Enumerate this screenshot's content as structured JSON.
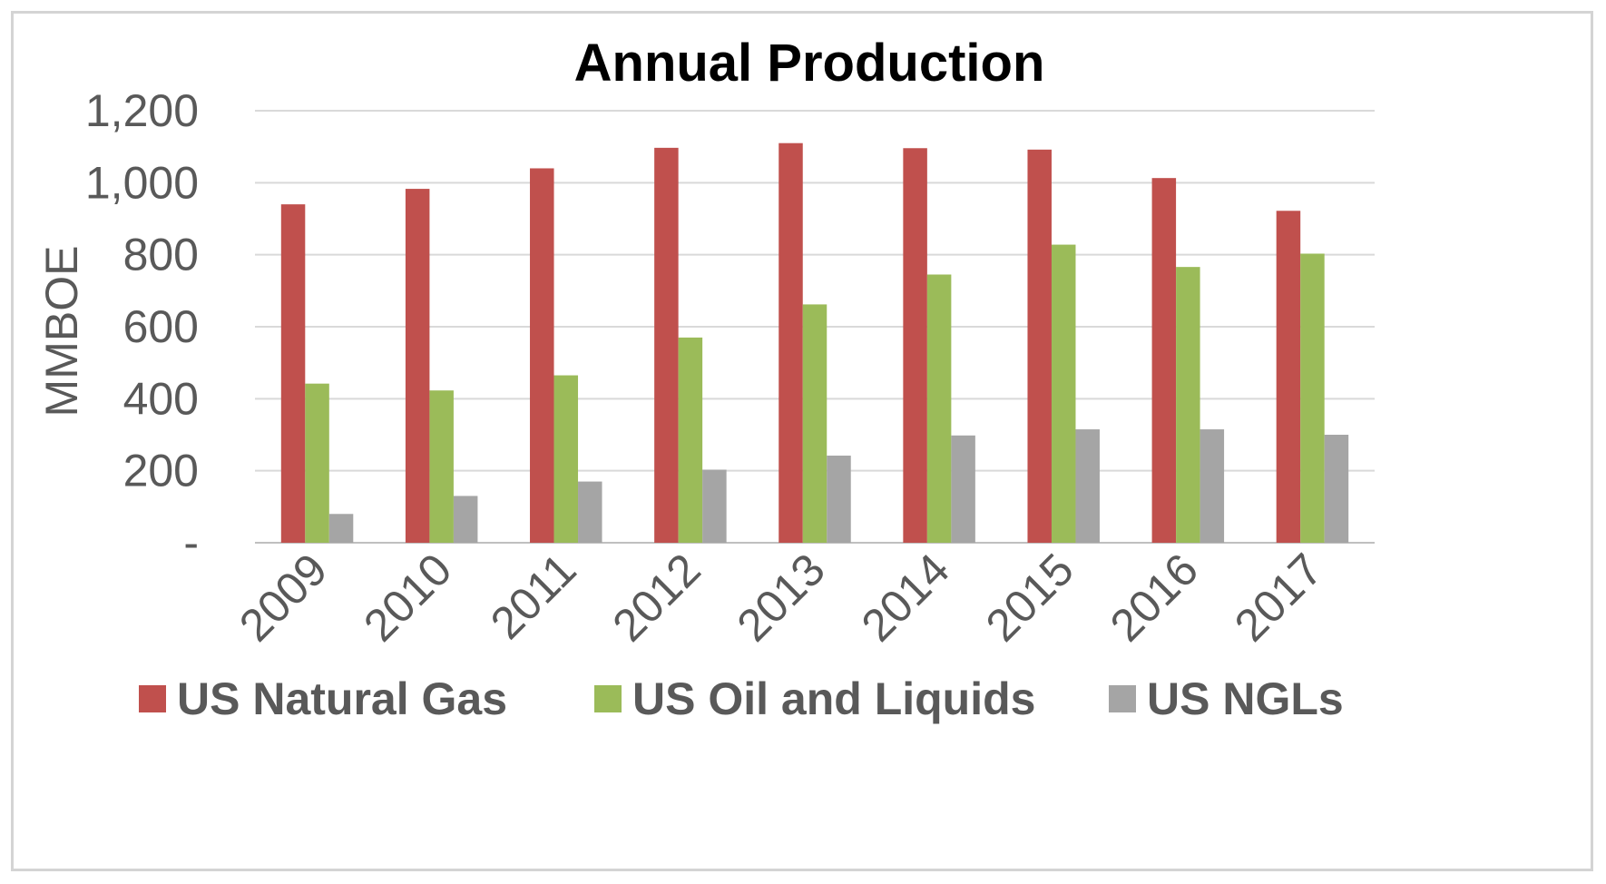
{
  "chart_data": {
    "type": "bar",
    "title": "Annual Production",
    "xlabel": "",
    "ylabel": "MMBOE",
    "ylim": [
      0,
      1200
    ],
    "yticks": [
      0,
      200,
      400,
      600,
      800,
      1000,
      1200
    ],
    "ytick_labels": [
      "-",
      "200",
      "400",
      "600",
      "800",
      "1,000",
      "1,200"
    ],
    "categories": [
      "2009",
      "2010",
      "2011",
      "2012",
      "2013",
      "2014",
      "2015",
      "2016",
      "2017"
    ],
    "grid": true,
    "legend_position": "bottom",
    "series": [
      {
        "name": "US Natural Gas",
        "color": "#c0504d",
        "values": [
          940,
          983,
          1040,
          1097,
          1110,
          1096,
          1092,
          1013,
          922
        ]
      },
      {
        "name": "US Oil and Liquids",
        "color": "#9bbb59",
        "values": [
          442,
          423,
          465,
          570,
          662,
          745,
          828,
          766,
          803
        ]
      },
      {
        "name": "US NGLs",
        "color": "#a5a5a5",
        "values": [
          80,
          130,
          170,
          203,
          242,
          298,
          315,
          315,
          300
        ]
      }
    ]
  }
}
